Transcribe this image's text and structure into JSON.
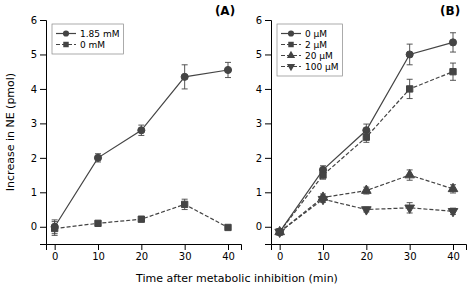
{
  "chart_data": [
    {
      "type": "line",
      "title": "(A)",
      "xlabel": "Time after metabolic inhibition (min)",
      "ylabel": "Increase in NE (pmol)",
      "x": [
        0,
        10,
        20,
        30,
        40
      ],
      "series": [
        {
          "name": "1.85 mM",
          "color": "#444444",
          "marker": "circle",
          "line_style": "solid",
          "values": [
            0.0,
            2.0,
            2.8,
            4.35,
            4.55
          ],
          "errors": [
            0.2,
            0.12,
            0.15,
            0.35,
            0.22
          ]
        },
        {
          "name": "0 mM",
          "color": "#444444",
          "marker": "square",
          "line_style": "dashed",
          "values": [
            -0.05,
            0.1,
            0.22,
            0.65,
            -0.02
          ],
          "errors": [
            0.2,
            0.06,
            0.07,
            0.15,
            0.06
          ]
        }
      ],
      "xlim": [
        -2,
        43
      ],
      "xticks": [
        0,
        10,
        20,
        30,
        40
      ],
      "ylim": [
        -0.5,
        6.0
      ],
      "yticks": [
        0,
        1,
        2,
        3,
        4,
        5,
        6
      ],
      "grid": false,
      "legend": "upper left"
    },
    {
      "type": "line",
      "title": "(B)",
      "x": [
        0,
        10,
        20,
        30,
        40
      ],
      "series": [
        {
          "name": "0 μM",
          "color": "#444444",
          "marker": "circle",
          "line_style": "solid",
          "values": [
            -0.15,
            1.65,
            2.8,
            5.0,
            5.35
          ],
          "errors": [
            0.08,
            0.12,
            0.18,
            0.3,
            0.28
          ]
        },
        {
          "name": "2 μM",
          "color": "#444444",
          "marker": "square",
          "line_style": "dashed",
          "values": [
            -0.15,
            1.5,
            2.6,
            4.0,
            4.5
          ],
          "errors": [
            0.08,
            0.12,
            0.15,
            0.28,
            0.25
          ]
        },
        {
          "name": "20 μM",
          "color": "#444444",
          "marker": "triangle-up",
          "line_style": "dashed",
          "values": [
            -0.15,
            0.85,
            1.05,
            1.5,
            1.1
          ],
          "errors": [
            0.07,
            0.1,
            0.1,
            0.15,
            0.12
          ]
        },
        {
          "name": "100 μM",
          "color": "#444444",
          "marker": "triangle-down",
          "line_style": "dashed",
          "values": [
            -0.15,
            0.8,
            0.5,
            0.55,
            0.45
          ],
          "errors": [
            0.07,
            0.09,
            0.07,
            0.15,
            0.09
          ]
        }
      ],
      "xlim": [
        -2,
        43
      ],
      "xticks": [
        0,
        10,
        20,
        30,
        40
      ],
      "ylim": [
        -0.5,
        6.0
      ],
      "yticks": [
        0,
        1,
        2,
        3,
        4,
        5,
        6
      ],
      "grid": false,
      "legend": "upper left"
    }
  ]
}
